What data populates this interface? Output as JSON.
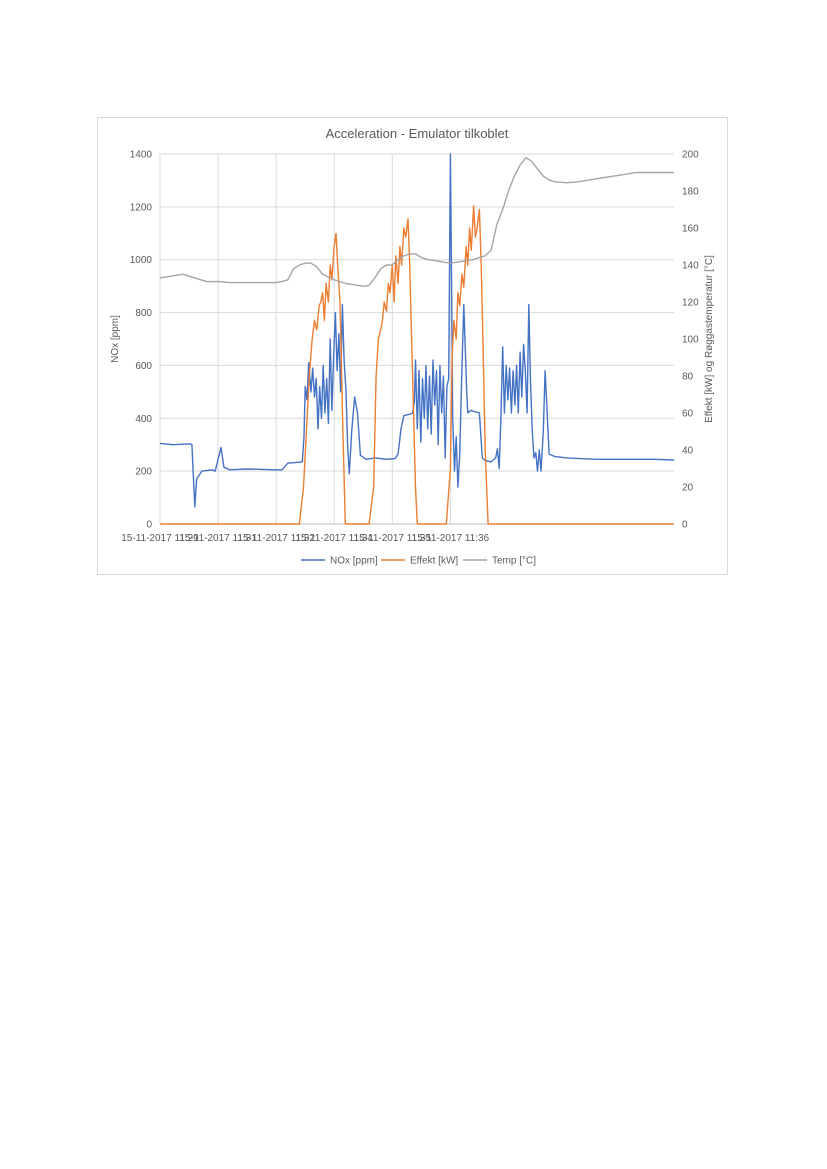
{
  "chart_data": {
    "type": "line",
    "title": "Acceleration - Emulator tilkoblet",
    "ylabel": "NOx [ppm]",
    "y2label": "Effekt [kW] og Røggastemperatur [°C]",
    "ylim": [
      0,
      1400
    ],
    "y2lim": [
      0,
      200
    ],
    "yticks": [
      "0",
      "200",
      "400",
      "600",
      "800",
      "1000",
      "1200",
      "1400"
    ],
    "y2ticks": [
      "0",
      "20",
      "40",
      "60",
      "80",
      "100",
      "120",
      "140",
      "160",
      "180",
      "200"
    ],
    "xlim": [
      0,
      8.85
    ],
    "xticks": [
      {
        "x": 0,
        "label": "15-11-2017 11:29"
      },
      {
        "x": 1,
        "label": "15-11-2017 11:31"
      },
      {
        "x": 2,
        "label": "15-11-2017 11:32"
      },
      {
        "x": 3,
        "label": "15-11-2017 11:34"
      },
      {
        "x": 4,
        "label": "15-11-2017 11:35"
      },
      {
        "x": 5,
        "label": "15-11-2017 11:36"
      }
    ],
    "grid": true,
    "legend_position": "bottom",
    "series": [
      {
        "name": "NOx [ppm]",
        "axis": "left",
        "color": "#4472c4",
        "points": [
          [
            0.0,
            305
          ],
          [
            0.22,
            300
          ],
          [
            0.52,
            303
          ],
          [
            0.55,
            300
          ],
          [
            0.57,
            200
          ],
          [
            0.6,
            65
          ],
          [
            0.63,
            170
          ],
          [
            0.72,
            200
          ],
          [
            0.9,
            205
          ],
          [
            0.95,
            200
          ],
          [
            1.0,
            245
          ],
          [
            1.05,
            290
          ],
          [
            1.1,
            215
          ],
          [
            1.2,
            205
          ],
          [
            1.5,
            208
          ],
          [
            2.0,
            205
          ],
          [
            2.1,
            205
          ],
          [
            2.2,
            230
          ],
          [
            2.3,
            232
          ],
          [
            2.45,
            235
          ],
          [
            2.48,
            330
          ],
          [
            2.5,
            520
          ],
          [
            2.53,
            470
          ],
          [
            2.56,
            610
          ],
          [
            2.6,
            500
          ],
          [
            2.63,
            590
          ],
          [
            2.66,
            480
          ],
          [
            2.69,
            550
          ],
          [
            2.72,
            360
          ],
          [
            2.75,
            520
          ],
          [
            2.78,
            400
          ],
          [
            2.81,
            600
          ],
          [
            2.84,
            420
          ],
          [
            2.87,
            550
          ],
          [
            2.9,
            380
          ],
          [
            2.93,
            700
          ],
          [
            2.96,
            430
          ],
          [
            2.99,
            640
          ],
          [
            3.02,
            800
          ],
          [
            3.05,
            580
          ],
          [
            3.08,
            720
          ],
          [
            3.11,
            500
          ],
          [
            3.14,
            830
          ],
          [
            3.17,
            620
          ],
          [
            3.2,
            510
          ],
          [
            3.23,
            300
          ],
          [
            3.26,
            190
          ],
          [
            3.3,
            350
          ],
          [
            3.35,
            480
          ],
          [
            3.4,
            420
          ],
          [
            3.45,
            260
          ],
          [
            3.55,
            245
          ],
          [
            3.7,
            250
          ],
          [
            3.9,
            245
          ],
          [
            4.05,
            248
          ],
          [
            4.1,
            265
          ],
          [
            4.15,
            360
          ],
          [
            4.2,
            410
          ],
          [
            4.3,
            415
          ],
          [
            4.35,
            420
          ],
          [
            4.38,
            460
          ],
          [
            4.4,
            620
          ],
          [
            4.43,
            360
          ],
          [
            4.46,
            580
          ],
          [
            4.49,
            310
          ],
          [
            4.52,
            550
          ],
          [
            4.55,
            400
          ],
          [
            4.58,
            600
          ],
          [
            4.61,
            360
          ],
          [
            4.64,
            560
          ],
          [
            4.67,
            340
          ],
          [
            4.7,
            620
          ],
          [
            4.73,
            450
          ],
          [
            4.76,
            580
          ],
          [
            4.79,
            300
          ],
          [
            4.82,
            600
          ],
          [
            4.85,
            420
          ],
          [
            4.88,
            560
          ],
          [
            4.91,
            250
          ],
          [
            4.94,
            520
          ],
          [
            4.97,
            550
          ],
          [
            5.0,
            1400
          ],
          [
            5.02,
            900
          ],
          [
            5.04,
            400
          ],
          [
            5.07,
            200
          ],
          [
            5.1,
            330
          ],
          [
            5.13,
            140
          ],
          [
            5.16,
            260
          ],
          [
            5.2,
            600
          ],
          [
            5.23,
            830
          ],
          [
            5.28,
            500
          ],
          [
            5.3,
            420
          ],
          [
            5.35,
            430
          ],
          [
            5.5,
            420
          ],
          [
            5.55,
            250
          ],
          [
            5.6,
            240
          ],
          [
            5.7,
            235
          ],
          [
            5.78,
            250
          ],
          [
            5.81,
            285
          ],
          [
            5.84,
            210
          ],
          [
            5.87,
            400
          ],
          [
            5.9,
            670
          ],
          [
            5.93,
            420
          ],
          [
            5.96,
            600
          ],
          [
            5.99,
            470
          ],
          [
            6.02,
            590
          ],
          [
            6.05,
            420
          ],
          [
            6.08,
            580
          ],
          [
            6.11,
            450
          ],
          [
            6.14,
            600
          ],
          [
            6.17,
            420
          ],
          [
            6.2,
            650
          ],
          [
            6.23,
            480
          ],
          [
            6.26,
            680
          ],
          [
            6.29,
            580
          ],
          [
            6.32,
            420
          ],
          [
            6.35,
            830
          ],
          [
            6.38,
            540
          ],
          [
            6.41,
            350
          ],
          [
            6.44,
            250
          ],
          [
            6.47,
            270
          ],
          [
            6.5,
            200
          ],
          [
            6.53,
            280
          ],
          [
            6.56,
            200
          ],
          [
            6.6,
            350
          ],
          [
            6.63,
            580
          ],
          [
            6.66,
            450
          ],
          [
            6.7,
            265
          ],
          [
            6.8,
            255
          ],
          [
            7.0,
            250
          ],
          [
            7.5,
            245
          ],
          [
            8.0,
            245
          ],
          [
            8.5,
            245
          ],
          [
            8.85,
            242
          ]
        ]
      },
      {
        "name": "Effekt [kW]",
        "axis": "right",
        "color": "#ed7d31",
        "points": [
          [
            0.0,
            0
          ],
          [
            1.0,
            0
          ],
          [
            2.0,
            0
          ],
          [
            2.4,
            0
          ],
          [
            2.47,
            20
          ],
          [
            2.52,
            50
          ],
          [
            2.57,
            80
          ],
          [
            2.62,
            100
          ],
          [
            2.66,
            110
          ],
          [
            2.7,
            105
          ],
          [
            2.74,
            118
          ],
          [
            2.77,
            120
          ],
          [
            2.8,
            125
          ],
          [
            2.83,
            110
          ],
          [
            2.86,
            130
          ],
          [
            2.9,
            120
          ],
          [
            2.93,
            140
          ],
          [
            2.96,
            132
          ],
          [
            3.0,
            150
          ],
          [
            3.03,
            157
          ],
          [
            3.06,
            140
          ],
          [
            3.1,
            120
          ],
          [
            3.15,
            50
          ],
          [
            3.19,
            0
          ],
          [
            3.5,
            0
          ],
          [
            3.6,
            0
          ],
          [
            3.68,
            20
          ],
          [
            3.72,
            80
          ],
          [
            3.76,
            100
          ],
          [
            3.8,
            105
          ],
          [
            3.83,
            110
          ],
          [
            3.86,
            120
          ],
          [
            3.9,
            115
          ],
          [
            3.93,
            130
          ],
          [
            3.96,
            125
          ],
          [
            4.0,
            140
          ],
          [
            4.03,
            120
          ],
          [
            4.06,
            145
          ],
          [
            4.1,
            130
          ],
          [
            4.13,
            150
          ],
          [
            4.16,
            140
          ],
          [
            4.2,
            160
          ],
          [
            4.23,
            155
          ],
          [
            4.27,
            165
          ],
          [
            4.3,
            140
          ],
          [
            4.35,
            80
          ],
          [
            4.4,
            20
          ],
          [
            4.43,
            0
          ],
          [
            4.93,
            0
          ],
          [
            5.0,
            30
          ],
          [
            5.03,
            90
          ],
          [
            5.06,
            110
          ],
          [
            5.1,
            100
          ],
          [
            5.13,
            125
          ],
          [
            5.16,
            118
          ],
          [
            5.2,
            135
          ],
          [
            5.23,
            128
          ],
          [
            5.27,
            150
          ],
          [
            5.3,
            140
          ],
          [
            5.33,
            160
          ],
          [
            5.36,
            148
          ],
          [
            5.4,
            172
          ],
          [
            5.43,
            155
          ],
          [
            5.46,
            160
          ],
          [
            5.5,
            170
          ],
          [
            5.53,
            140
          ],
          [
            5.56,
            100
          ],
          [
            5.6,
            40
          ],
          [
            5.65,
            0
          ],
          [
            5.9,
            0
          ],
          [
            6.0,
            0
          ],
          [
            6.2,
            0
          ],
          [
            6.3,
            0
          ],
          [
            6.5,
            0
          ],
          [
            7.0,
            0
          ],
          [
            8.0,
            0
          ],
          [
            8.85,
            0
          ]
        ]
      },
      {
        "name": "Temp [°C]",
        "axis": "right",
        "color": "#a5a5a5",
        "points": [
          [
            0.0,
            133
          ],
          [
            0.2,
            134
          ],
          [
            0.4,
            135
          ],
          [
            0.6,
            133
          ],
          [
            0.8,
            131
          ],
          [
            1.0,
            131
          ],
          [
            1.2,
            130.5
          ],
          [
            1.5,
            130.5
          ],
          [
            1.8,
            130.5
          ],
          [
            2.0,
            130.5
          ],
          [
            2.1,
            131
          ],
          [
            2.2,
            132
          ],
          [
            2.3,
            138
          ],
          [
            2.4,
            140
          ],
          [
            2.5,
            141
          ],
          [
            2.6,
            141
          ],
          [
            2.7,
            139
          ],
          [
            2.8,
            135
          ],
          [
            3.0,
            132
          ],
          [
            3.2,
            130
          ],
          [
            3.4,
            129
          ],
          [
            3.5,
            128.5
          ],
          [
            3.6,
            129
          ],
          [
            3.7,
            133
          ],
          [
            3.8,
            138
          ],
          [
            3.9,
            140
          ],
          [
            4.0,
            140
          ],
          [
            4.1,
            143
          ],
          [
            4.2,
            145
          ],
          [
            4.3,
            146
          ],
          [
            4.4,
            146
          ],
          [
            4.5,
            144
          ],
          [
            4.6,
            143
          ],
          [
            4.8,
            142
          ],
          [
            5.0,
            141
          ],
          [
            5.2,
            142
          ],
          [
            5.4,
            143
          ],
          [
            5.5,
            144
          ],
          [
            5.6,
            145
          ],
          [
            5.7,
            148
          ],
          [
            5.8,
            162
          ],
          [
            5.9,
            170
          ],
          [
            6.0,
            180
          ],
          [
            6.1,
            188
          ],
          [
            6.2,
            194
          ],
          [
            6.3,
            198
          ],
          [
            6.4,
            196
          ],
          [
            6.5,
            192
          ],
          [
            6.6,
            188
          ],
          [
            6.7,
            186
          ],
          [
            6.8,
            185
          ],
          [
            7.0,
            184.5
          ],
          [
            7.2,
            185
          ],
          [
            7.4,
            186
          ],
          [
            7.6,
            187
          ],
          [
            7.8,
            188
          ],
          [
            8.0,
            189
          ],
          [
            8.2,
            190
          ],
          [
            8.4,
            190
          ],
          [
            8.6,
            190
          ],
          [
            8.85,
            190
          ]
        ]
      }
    ]
  }
}
